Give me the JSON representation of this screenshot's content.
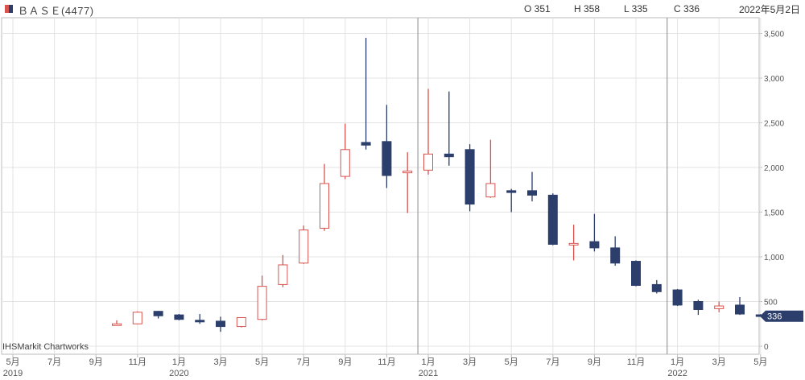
{
  "header": {
    "title": "ＢＡＳＥ(4477)",
    "open": "O 351",
    "high": "H 358",
    "low": "L 335",
    "close": "C 336",
    "date": "2022年5月2日"
  },
  "watermark": "IHSMarkit Chartworks",
  "colors": {
    "up": "#d9534f",
    "down": "#2c3e6b",
    "grid": "#e3e3e3",
    "divider": "#9a9a9a",
    "axis": "#bbbbbb"
  },
  "chart_data": {
    "type": "candlestick",
    "interval": "monthly",
    "ylim": [
      0,
      3600
    ],
    "y_ticks": [
      0,
      500,
      1000,
      1500,
      2000,
      2500,
      3000,
      3500
    ],
    "y_tick_labels": [
      "0",
      "500",
      "1,000",
      "1,500",
      "2,000",
      "2,500",
      "3,000",
      "3,500"
    ],
    "x_tick_labels": [
      {
        "m": "2019-05",
        "label": "5月",
        "year": "2019"
      },
      {
        "m": "2019-07",
        "label": "7月"
      },
      {
        "m": "2019-09",
        "label": "9月"
      },
      {
        "m": "2019-11",
        "label": "11月"
      },
      {
        "m": "2020-01",
        "label": "1月",
        "year": "2020"
      },
      {
        "m": "2020-03",
        "label": "3月"
      },
      {
        "m": "2020-05",
        "label": "5月"
      },
      {
        "m": "2020-07",
        "label": "7月"
      },
      {
        "m": "2020-09",
        "label": "9月"
      },
      {
        "m": "2020-11",
        "label": "11月"
      },
      {
        "m": "2021-01",
        "label": "1月",
        "year": "2021"
      },
      {
        "m": "2021-03",
        "label": "3月"
      },
      {
        "m": "2021-05",
        "label": "5月"
      },
      {
        "m": "2021-07",
        "label": "7月"
      },
      {
        "m": "2021-09",
        "label": "9月"
      },
      {
        "m": "2021-11",
        "label": "11月"
      },
      {
        "m": "2022-01",
        "label": "1月",
        "year": "2022"
      },
      {
        "m": "2022-03",
        "label": "3月"
      },
      {
        "m": "2022-05",
        "label": "5月"
      }
    ],
    "candles": [
      {
        "m": "2019-10",
        "o": 240,
        "h": 290,
        "l": 235,
        "c": 250
      },
      {
        "m": "2019-11",
        "o": 250,
        "h": 390,
        "l": 245,
        "c": 380
      },
      {
        "m": "2019-12",
        "o": 390,
        "h": 395,
        "l": 310,
        "c": 340
      },
      {
        "m": "2020-01",
        "o": 350,
        "h": 360,
        "l": 290,
        "c": 300
      },
      {
        "m": "2020-02",
        "o": 290,
        "h": 360,
        "l": 250,
        "c": 275
      },
      {
        "m": "2020-03",
        "o": 280,
        "h": 330,
        "l": 160,
        "c": 220
      },
      {
        "m": "2020-04",
        "o": 220,
        "h": 325,
        "l": 210,
        "c": 320
      },
      {
        "m": "2020-05",
        "o": 300,
        "h": 790,
        "l": 290,
        "c": 670
      },
      {
        "m": "2020-06",
        "o": 690,
        "h": 1020,
        "l": 660,
        "c": 910
      },
      {
        "m": "2020-07",
        "o": 930,
        "h": 1350,
        "l": 920,
        "c": 1300
      },
      {
        "m": "2020-08",
        "o": 1320,
        "h": 2040,
        "l": 1290,
        "c": 1820
      },
      {
        "m": "2020-09",
        "o": 1900,
        "h": 2490,
        "l": 1870,
        "c": 2200
      },
      {
        "m": "2020-10",
        "o": 2280,
        "h": 3450,
        "l": 2200,
        "c": 2250
      },
      {
        "m": "2020-11",
        "o": 2290,
        "h": 2700,
        "l": 1770,
        "c": 1910
      },
      {
        "m": "2020-12",
        "o": 1940,
        "h": 2170,
        "l": 1490,
        "c": 1960
      },
      {
        "m": "2021-01",
        "o": 1970,
        "h": 2880,
        "l": 1920,
        "c": 2150
      },
      {
        "m": "2021-02",
        "o": 2150,
        "h": 2850,
        "l": 2020,
        "c": 2120
      },
      {
        "m": "2021-03",
        "o": 2200,
        "h": 2260,
        "l": 1510,
        "c": 1590
      },
      {
        "m": "2021-04",
        "o": 1670,
        "h": 2310,
        "l": 1660,
        "c": 1820
      },
      {
        "m": "2021-05",
        "o": 1740,
        "h": 1760,
        "l": 1500,
        "c": 1720
      },
      {
        "m": "2021-06",
        "o": 1740,
        "h": 1950,
        "l": 1620,
        "c": 1690
      },
      {
        "m": "2021-07",
        "o": 1690,
        "h": 1710,
        "l": 1130,
        "c": 1140
      },
      {
        "m": "2021-08",
        "o": 1140,
        "h": 1360,
        "l": 960,
        "c": 1150
      },
      {
        "m": "2021-09",
        "o": 1170,
        "h": 1480,
        "l": 1060,
        "c": 1100
      },
      {
        "m": "2021-10",
        "o": 1100,
        "h": 1230,
        "l": 900,
        "c": 930
      },
      {
        "m": "2021-11",
        "o": 950,
        "h": 960,
        "l": 670,
        "c": 680
      },
      {
        "m": "2021-12",
        "o": 690,
        "h": 740,
        "l": 590,
        "c": 610
      },
      {
        "m": "2022-01",
        "o": 630,
        "h": 640,
        "l": 450,
        "c": 460
      },
      {
        "m": "2022-02",
        "o": 500,
        "h": 520,
        "l": 350,
        "c": 410
      },
      {
        "m": "2022-03",
        "o": 420,
        "h": 500,
        "l": 380,
        "c": 450
      },
      {
        "m": "2022-04",
        "o": 460,
        "h": 550,
        "l": 350,
        "c": 360
      },
      {
        "m": "2022-05",
        "o": 351,
        "h": 358,
        "l": 335,
        "c": 336
      }
    ],
    "last_price_label": "336",
    "last_price": 336,
    "year_dividers": [
      "2021-01",
      "2022-01"
    ]
  }
}
